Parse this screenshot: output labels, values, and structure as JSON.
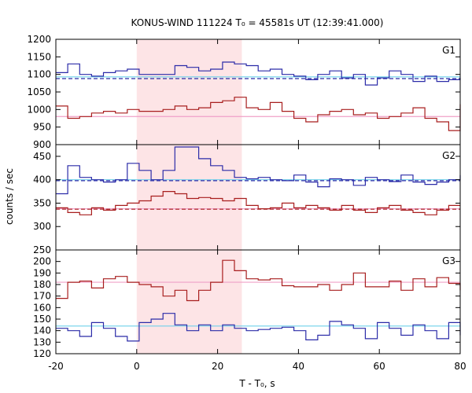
{
  "chart_data": {
    "type": "line",
    "title": "KONUS-WIND 111224 T₀ = 45581s UT (12:39:41.000)",
    "xlabel": "T - T₀, s",
    "ylabel": "counts / sec",
    "xlim": [
      -20,
      80
    ],
    "x_ticks": [
      -20,
      0,
      20,
      40,
      60,
      80
    ],
    "highlight_interval": [
      0,
      26
    ],
    "colors": {
      "blue": "#2b2ba8",
      "red": "#a81e1e",
      "fit_cyan": "#6fd0ea",
      "fit_pink": "#f0a0c8",
      "highlight": "#fde4e6"
    },
    "panels": [
      {
        "label": "G1",
        "ylim": [
          900,
          1200
        ],
        "y_ticks": [
          900,
          950,
          1000,
          1050,
          1100,
          1150,
          1200
        ],
        "series": [
          {
            "color": "blue",
            "x0": -20,
            "step": 2.944,
            "values": [
              1105,
              1130,
              1100,
              1095,
              1105,
              1110,
              1115,
              1100,
              1100,
              1100,
              1125,
              1120,
              1110,
              1115,
              1135,
              1130,
              1125,
              1110,
              1115,
              1100,
              1095,
              1085,
              1100,
              1110,
              1090,
              1100,
              1070,
              1090,
              1110,
              1100,
              1080,
              1095,
              1080,
              1085,
              1090
            ]
          },
          {
            "color": "red",
            "x0": -20,
            "step": 2.944,
            "values": [
              1010,
              975,
              980,
              990,
              995,
              990,
              1000,
              995,
              995,
              1000,
              1010,
              1000,
              1005,
              1020,
              1025,
              1035,
              1005,
              1000,
              1020,
              995,
              975,
              965,
              985,
              995,
              1000,
              985,
              990,
              975,
              980,
              990,
              1005,
              975,
              965,
              940,
              985,
              1015,
              985,
              975
            ]
          }
        ],
        "fits": [
          {
            "color": "fit_cyan",
            "style": "solid",
            "y": 1093,
            "x": [
              -20,
              80
            ]
          },
          {
            "color": "blue",
            "style": "dashed",
            "y": 1088,
            "x": [
              -20,
              80
            ]
          },
          {
            "color": "fit_pink",
            "style": "solid",
            "y": 980,
            "x": [
              -20,
              80
            ]
          }
        ]
      },
      {
        "label": "G2",
        "ylim": [
          250,
          475
        ],
        "y_ticks": [
          250,
          300,
          350,
          400,
          450
        ],
        "series": [
          {
            "color": "blue",
            "x0": -20,
            "step": 2.944,
            "values": [
              370,
              430,
              405,
              400,
              395,
              400,
              435,
              420,
              400,
              420,
              470,
              470,
              445,
              430,
              420,
              405,
              402,
              405,
              400,
              398,
              410,
              395,
              385,
              402,
              400,
              388,
              405,
              400,
              396,
              410,
              395,
              390,
              395,
              400,
              410,
              400,
              400
            ]
          },
          {
            "color": "red",
            "x0": -20,
            "step": 2.944,
            "values": [
              340,
              330,
              325,
              340,
              335,
              345,
              350,
              355,
              365,
              375,
              370,
              360,
              362,
              360,
              355,
              360,
              345,
              338,
              340,
              350,
              340,
              345,
              340,
              335,
              345,
              335,
              330,
              340,
              345,
              335,
              330,
              325,
              335,
              345
            ]
          }
        ],
        "fits": [
          {
            "color": "fit_cyan",
            "style": "solid",
            "y": 400,
            "x": [
              -20,
              80
            ]
          },
          {
            "color": "blue",
            "style": "dashed",
            "y": 398,
            "x": [
              -20,
              80
            ]
          },
          {
            "color": "fit_pink",
            "style": "solid",
            "y": 338,
            "x": [
              -20,
              80
            ]
          },
          {
            "color": "red",
            "style": "dashed",
            "y": 337,
            "x": [
              -20,
              80
            ]
          }
        ]
      },
      {
        "label": "G3",
        "ylim": [
          120,
          210
        ],
        "y_ticks": [
          120,
          130,
          140,
          150,
          160,
          170,
          180,
          190,
          200
        ],
        "series": [
          {
            "color": "red",
            "x0": -20,
            "step": 2.944,
            "values": [
              168,
              182,
              183,
              177,
              185,
              187,
              182,
              180,
              178,
              170,
              175,
              166,
              175,
              182,
              201,
              192,
              185,
              184,
              185,
              179,
              178,
              178,
              180,
              175,
              180,
              190,
              178,
              178,
              183,
              175,
              185,
              178,
              186,
              181,
              178,
              175,
              180,
              176
            ]
          },
          {
            "color": "blue",
            "x0": -20,
            "step": 2.944,
            "values": [
              142,
              140,
              135,
              147,
              142,
              135,
              131,
              147,
              150,
              155,
              145,
              140,
              145,
              140,
              145,
              142,
              140,
              141,
              142,
              143,
              140,
              132,
              136,
              148,
              145,
              142,
              133,
              147,
              142,
              136,
              145,
              140,
              133,
              147,
              142,
              136,
              145,
              140
            ]
          }
        ],
        "fits": [
          {
            "color": "fit_pink",
            "style": "solid",
            "y": 182,
            "x": [
              -20,
              80
            ]
          },
          {
            "color": "fit_cyan",
            "style": "solid",
            "y": 144,
            "x": [
              -20,
              80
            ]
          }
        ]
      }
    ]
  }
}
